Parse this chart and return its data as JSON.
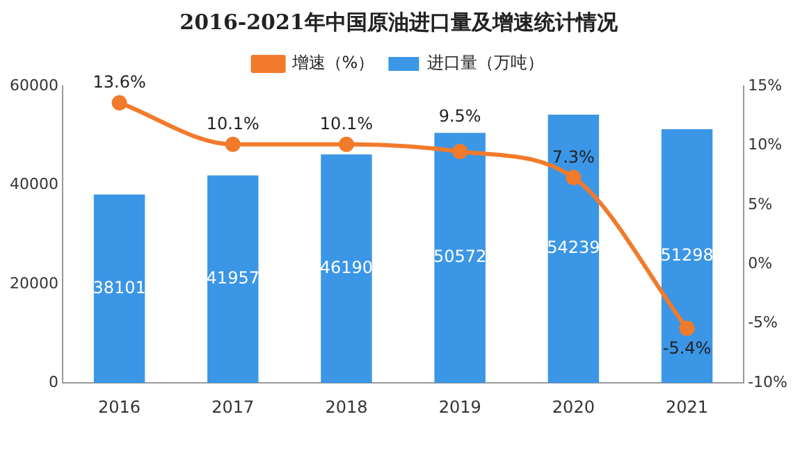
{
  "chart_data": {
    "type": "bar",
    "title": "2016-2021年中国原油进口量及增速统计情况",
    "categories": [
      "2016",
      "2017",
      "2018",
      "2019",
      "2020",
      "2021"
    ],
    "series": [
      {
        "name": "进口量（万吨）",
        "color": "#3b96e6",
        "values": [
          38101,
          41957,
          46190,
          50572,
          54239,
          51298
        ]
      },
      {
        "name": "增速（%）",
        "type": "line",
        "axis": "y2",
        "color": "#f27a2b",
        "marker": "circle",
        "values": [
          13.6,
          10.1,
          10.1,
          9.5,
          7.3,
          -5.4
        ],
        "value_labels": [
          "13.6%",
          "10.1%",
          "10.1%",
          "9.5%",
          "7.3%",
          "-5.4%"
        ]
      }
    ],
    "ylim": [
      0,
      60000
    ],
    "yticks": [
      0,
      20000,
      40000,
      60000
    ],
    "y2lim": [
      -10,
      15
    ],
    "y2ticks": [
      {
        "value": -10,
        "label": "-10%"
      },
      {
        "value": -5,
        "label": "-5%"
      },
      {
        "value": 0,
        "label": "0%"
      },
      {
        "value": 5,
        "label": "5%"
      },
      {
        "value": 10,
        "label": "10%"
      },
      {
        "value": 15,
        "label": "15%"
      }
    ],
    "grid": false,
    "legend": "top",
    "data_labels": true
  }
}
